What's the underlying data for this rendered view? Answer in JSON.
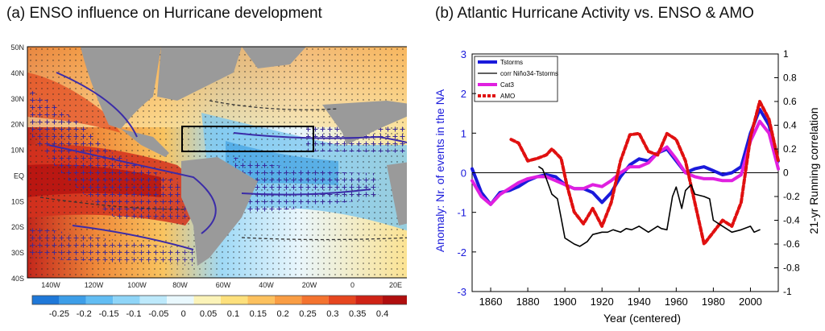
{
  "panel_a": {
    "title": "(a)   ENSO influence on Hurricane development",
    "lat_labels": [
      "50N",
      "40N",
      "30N",
      "20N",
      "10N",
      "EQ",
      "10S",
      "20S",
      "30S",
      "40S"
    ],
    "lon_labels": [
      "140W",
      "120W",
      "100W",
      "80W",
      "60W",
      "40W",
      "20W",
      "0",
      "20E"
    ],
    "colorbar_labels": [
      "-0.25",
      "-0.2",
      "-0.15",
      "-0.1",
      "-0.05",
      "0",
      "0.05",
      "0.1",
      "0.15",
      "0.2",
      "0.25",
      "0.3",
      "0.35",
      "0.4"
    ],
    "colorbar_colors": [
      "#1f78d8",
      "#3d9ee8",
      "#62bdf3",
      "#8fd5f8",
      "#bde9fb",
      "#e9f8fd",
      "#fbf3b8",
      "#fde07c",
      "#fcc15e",
      "#f99d44",
      "#f4732f",
      "#e6461f",
      "#cf2316",
      "#b00e0e"
    ]
  },
  "chart_data": {
    "type": "line",
    "title": "(b) Atlantic Hurricane Activity vs. ENSO & AMO",
    "xlabel": "Year (centered)",
    "ylabel": "Anomaly: Nr. of events in the NA",
    "y2label": "21-yr Running correlation",
    "xlim": [
      1850,
      2015
    ],
    "ylim": [
      -3,
      3
    ],
    "y2lim": [
      -1,
      1
    ],
    "xticks": [
      "1860",
      "1880",
      "1900",
      "1920",
      "1940",
      "1960",
      "1980",
      "2000"
    ],
    "yticks": [
      "-3",
      "-2",
      "-1",
      "0",
      "1",
      "2",
      "3"
    ],
    "y2ticks": [
      "-1",
      "-0.8",
      "-0.6",
      "-0.4",
      "-0.2",
      "0",
      "0.2",
      "0.4",
      "0.6",
      "0.8",
      "1"
    ],
    "legend": [
      "Tstorms",
      "corr Niño34-Tstorms",
      "Cat3",
      "AMO"
    ],
    "series": [
      {
        "name": "Tstorms",
        "color": "#1a1adb",
        "axis": "left",
        "x": [
          1850,
          1855,
          1860,
          1865,
          1870,
          1875,
          1880,
          1885,
          1890,
          1895,
          1900,
          1905,
          1910,
          1915,
          1920,
          1925,
          1930,
          1935,
          1940,
          1945,
          1950,
          1955,
          1960,
          1965,
          1970,
          1975,
          1980,
          1985,
          1990,
          1995,
          2000,
          2005,
          2010,
          2015
        ],
        "values": [
          0.1,
          -0.5,
          -0.8,
          -0.5,
          -0.45,
          -0.35,
          -0.2,
          -0.1,
          -0.05,
          -0.1,
          -0.3,
          -0.4,
          -0.4,
          -0.5,
          -0.75,
          -0.5,
          -0.1,
          0.2,
          0.35,
          0.3,
          0.5,
          0.6,
          0.3,
          0.0,
          0.1,
          0.15,
          0.05,
          -0.05,
          0.0,
          0.15,
          1.0,
          1.6,
          1.2,
          0.3
        ]
      },
      {
        "name": "Cat3",
        "color": "#e020e0",
        "axis": "left",
        "x": [
          1850,
          1855,
          1860,
          1865,
          1870,
          1875,
          1880,
          1885,
          1890,
          1895,
          1900,
          1905,
          1910,
          1915,
          1920,
          1925,
          1930,
          1935,
          1940,
          1945,
          1950,
          1955,
          1960,
          1965,
          1970,
          1975,
          1980,
          1985,
          1990,
          1995,
          2000,
          2005,
          2010,
          2015
        ],
        "values": [
          -0.2,
          -0.6,
          -0.8,
          -0.55,
          -0.4,
          -0.25,
          -0.15,
          -0.1,
          -0.1,
          -0.2,
          -0.3,
          -0.4,
          -0.4,
          -0.3,
          -0.35,
          -0.2,
          0.0,
          0.15,
          0.15,
          0.25,
          0.5,
          0.65,
          0.35,
          0.0,
          -0.1,
          -0.15,
          -0.15,
          -0.2,
          -0.2,
          -0.05,
          0.8,
          1.3,
          1.0,
          0.1
        ]
      },
      {
        "name": "AMO",
        "color": "#e01010",
        "axis": "right",
        "dashed": true,
        "x": [
          1871,
          1875,
          1880,
          1885,
          1890,
          1893,
          1898,
          1901,
          1905,
          1910,
          1915,
          1920,
          1925,
          1930,
          1935,
          1940,
          1945,
          1950,
          1955,
          1960,
          1965,
          1970,
          1975,
          1980,
          1985,
          1990,
          1995,
          2000,
          2005,
          2010,
          2015
        ],
        "values": [
          0.28,
          0.25,
          0.1,
          0.12,
          0.15,
          0.2,
          0.12,
          -0.1,
          -0.33,
          -0.43,
          -0.3,
          -0.45,
          -0.25,
          0.1,
          0.32,
          0.33,
          0.18,
          0.15,
          0.33,
          0.28,
          0.1,
          -0.25,
          -0.6,
          -0.5,
          -0.4,
          -0.45,
          -0.25,
          0.3,
          0.6,
          0.45,
          0.1
        ]
      },
      {
        "name": "corr Niño34-Tstorms",
        "color": "#000000",
        "axis": "right",
        "x": [
          1886,
          1888,
          1890,
          1893,
          1896,
          1898,
          1900,
          1905,
          1908,
          1912,
          1915,
          1920,
          1923,
          1926,
          1930,
          1933,
          1936,
          1940,
          1945,
          1950,
          1952,
          1955,
          1958,
          1960,
          1963,
          1965,
          1968,
          1970,
          1975,
          1978,
          1980,
          1985,
          1990,
          1995,
          2000,
          2002,
          2005
        ],
        "values": [
          0.05,
          0.03,
          -0.05,
          -0.18,
          -0.22,
          -0.38,
          -0.55,
          -0.6,
          -0.62,
          -0.58,
          -0.52,
          -0.5,
          -0.5,
          -0.48,
          -0.5,
          -0.47,
          -0.48,
          -0.45,
          -0.5,
          -0.45,
          -0.47,
          -0.48,
          -0.2,
          -0.12,
          -0.3,
          -0.15,
          -0.1,
          -0.18,
          -0.2,
          -0.22,
          -0.4,
          -0.45,
          -0.5,
          -0.48,
          -0.45,
          -0.5,
          -0.48
        ]
      }
    ]
  }
}
